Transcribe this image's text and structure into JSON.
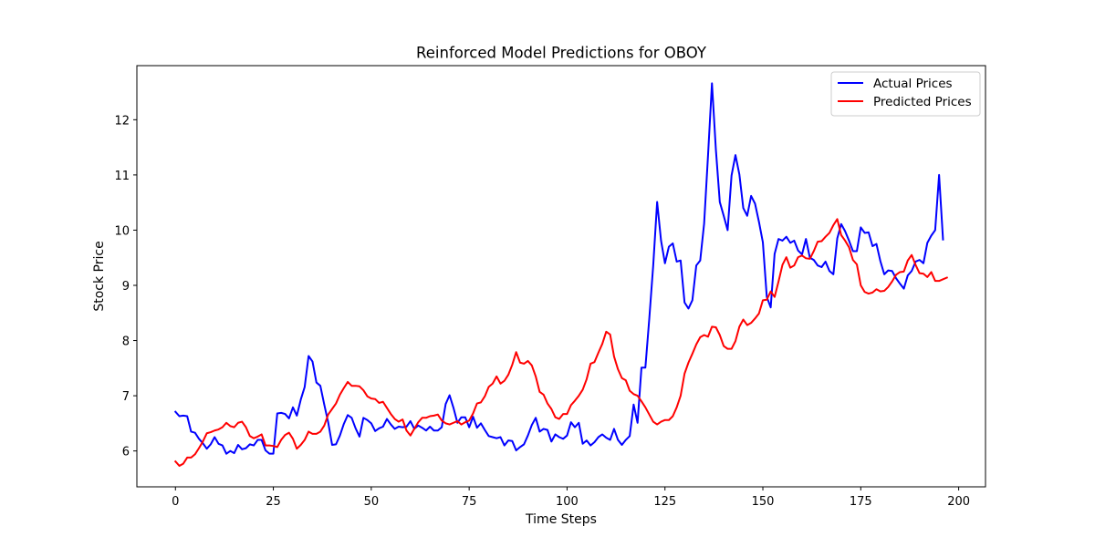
{
  "chart_data": {
    "type": "line",
    "title": "Reinforced Model Predictions for OBOY",
    "xlabel": "Time Steps",
    "ylabel": "Stock Price",
    "xlim": [
      -9.85,
      206.85
    ],
    "ylim": [
      5.35,
      12.98
    ],
    "xticks": [
      0,
      25,
      50,
      75,
      100,
      125,
      150,
      175,
      200
    ],
    "yticks": [
      6,
      7,
      8,
      9,
      10,
      11,
      12
    ],
    "grid": false,
    "legend_position": "top-right",
    "colors": {
      "actual": "#0000ff",
      "predicted": "#ff0000"
    },
    "series": [
      {
        "name": "Actual Prices",
        "color": "#0000ff",
        "values": [
          6.71,
          6.63,
          6.64,
          6.63,
          6.35,
          6.33,
          6.22,
          6.14,
          6.04,
          6.12,
          6.25,
          6.13,
          6.1,
          5.95,
          6.0,
          5.96,
          6.11,
          6.03,
          6.05,
          6.12,
          6.1,
          6.2,
          6.2,
          6.01,
          5.95,
          5.95,
          6.68,
          6.69,
          6.67,
          6.59,
          6.79,
          6.64,
          6.93,
          7.16,
          7.72,
          7.62,
          7.24,
          7.18,
          6.84,
          6.52,
          6.11,
          6.12,
          6.28,
          6.49,
          6.65,
          6.6,
          6.41,
          6.26,
          6.6,
          6.56,
          6.5,
          6.36,
          6.41,
          6.44,
          6.58,
          6.48,
          6.4,
          6.44,
          6.43,
          6.44,
          6.54,
          6.4,
          6.46,
          6.42,
          6.37,
          6.44,
          6.37,
          6.37,
          6.43,
          6.85,
          7.01,
          6.78,
          6.51,
          6.61,
          6.61,
          6.43,
          6.62,
          6.42,
          6.5,
          6.38,
          6.27,
          6.25,
          6.23,
          6.25,
          6.1,
          6.19,
          6.18,
          6.01,
          6.07,
          6.12,
          6.28,
          6.47,
          6.6,
          6.35,
          6.4,
          6.38,
          6.17,
          6.3,
          6.25,
          6.22,
          6.28,
          6.52,
          6.43,
          6.51,
          6.13,
          6.19,
          6.1,
          6.16,
          6.25,
          6.3,
          6.24,
          6.2,
          6.4,
          6.2,
          6.11,
          6.2,
          6.27,
          6.84,
          6.51,
          7.51,
          7.51,
          8.4,
          9.36,
          10.51,
          9.81,
          9.4,
          9.7,
          9.76,
          9.43,
          9.45,
          8.69,
          8.58,
          8.73,
          9.36,
          9.45,
          10.12,
          11.36,
          12.66,
          11.46,
          10.51,
          10.26,
          10.0,
          10.99,
          11.36,
          11.01,
          10.4,
          10.26,
          10.62,
          10.48,
          10.15,
          9.78,
          8.79,
          8.6,
          9.57,
          9.84,
          9.81,
          9.88,
          9.77,
          9.81,
          9.63,
          9.56,
          9.84,
          9.5,
          9.46,
          9.36,
          9.33,
          9.43,
          9.26,
          9.2,
          9.85,
          10.11,
          9.98,
          9.81,
          9.62,
          9.62,
          10.05,
          9.95,
          9.96,
          9.71,
          9.75,
          9.44,
          9.2,
          9.27,
          9.26,
          9.13,
          9.03,
          8.94,
          9.18,
          9.26,
          9.43,
          9.46,
          9.4,
          9.77,
          9.9,
          10.0,
          11.0,
          9.83
        ]
      },
      {
        "name": "Predicted Prices",
        "color": "#ff0000",
        "values": [
          5.81,
          5.73,
          5.77,
          5.88,
          5.88,
          5.94,
          6.05,
          6.17,
          6.32,
          6.34,
          6.37,
          6.39,
          6.43,
          6.51,
          6.45,
          6.43,
          6.51,
          6.53,
          6.43,
          6.27,
          6.23,
          6.26,
          6.3,
          6.1,
          6.1,
          6.09,
          6.07,
          6.2,
          6.29,
          6.33,
          6.22,
          6.04,
          6.11,
          6.2,
          6.35,
          6.31,
          6.31,
          6.35,
          6.46,
          6.66,
          6.76,
          6.86,
          7.02,
          7.14,
          7.25,
          7.18,
          7.18,
          7.17,
          7.1,
          6.99,
          6.95,
          6.94,
          6.87,
          6.89,
          6.78,
          6.67,
          6.58,
          6.53,
          6.57,
          6.37,
          6.28,
          6.4,
          6.52,
          6.6,
          6.6,
          6.63,
          6.64,
          6.66,
          6.55,
          6.5,
          6.48,
          6.51,
          6.54,
          6.48,
          6.52,
          6.55,
          6.68,
          6.86,
          6.88,
          6.99,
          7.16,
          7.22,
          7.35,
          7.22,
          7.27,
          7.38,
          7.56,
          7.79,
          7.6,
          7.58,
          7.63,
          7.55,
          7.35,
          7.07,
          7.02,
          6.86,
          6.76,
          6.61,
          6.58,
          6.67,
          6.67,
          6.83,
          6.91,
          7.0,
          7.11,
          7.3,
          7.58,
          7.61,
          7.78,
          7.94,
          8.16,
          8.11,
          7.71,
          7.48,
          7.32,
          7.28,
          7.09,
          7.03,
          7.0,
          6.9,
          6.79,
          6.66,
          6.53,
          6.48,
          6.53,
          6.56,
          6.56,
          6.63,
          6.79,
          7.0,
          7.4,
          7.6,
          7.76,
          7.93,
          8.06,
          8.1,
          8.07,
          8.25,
          8.24,
          8.1,
          7.9,
          7.85,
          7.85,
          7.99,
          8.25,
          8.38,
          8.28,
          8.32,
          8.4,
          8.49,
          8.73,
          8.74,
          8.89,
          8.79,
          9.07,
          9.37,
          9.51,
          9.32,
          9.36,
          9.51,
          9.54,
          9.49,
          9.48,
          9.62,
          9.79,
          9.8,
          9.88,
          9.95,
          10.09,
          10.2,
          9.91,
          9.81,
          9.69,
          9.46,
          9.38,
          9.0,
          8.88,
          8.85,
          8.87,
          8.93,
          8.89,
          8.9,
          8.97,
          9.07,
          9.19,
          9.24,
          9.25,
          9.45,
          9.55,
          9.37,
          9.22,
          9.21,
          9.15,
          9.24,
          9.08,
          9.08,
          9.11,
          9.14
        ]
      }
    ]
  }
}
